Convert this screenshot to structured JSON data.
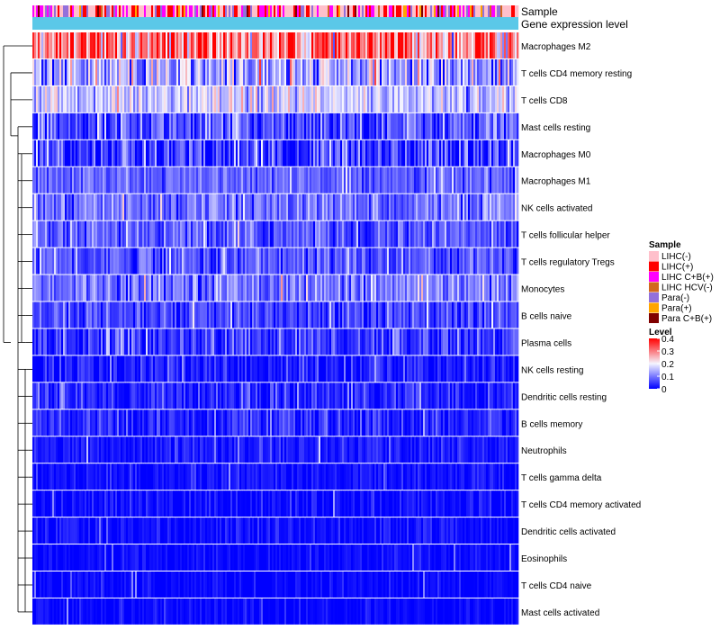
{
  "chart_data": {
    "type": "heatmap",
    "title": "",
    "annotation_tracks": [
      "Sample",
      "Gene expression level"
    ],
    "rows": [
      {
        "label": "Macrophages M2",
        "mean": 0.3,
        "spread": 0.09
      },
      {
        "label": "T cells CD4 memory resting",
        "mean": 0.13,
        "spread": 0.07
      },
      {
        "label": "T cells CD8",
        "mean": 0.16,
        "spread": 0.05
      },
      {
        "label": "Mast cells resting",
        "mean": 0.07,
        "spread": 0.05
      },
      {
        "label": "Macrophages M0",
        "mean": 0.05,
        "spread": 0.06
      },
      {
        "label": "Macrophages M1",
        "mean": 0.08,
        "spread": 0.03
      },
      {
        "label": "NK cells activated",
        "mean": 0.09,
        "spread": 0.04
      },
      {
        "label": "T cells follicular helper",
        "mean": 0.07,
        "spread": 0.04
      },
      {
        "label": "T cells regulatory  Tregs",
        "mean": 0.07,
        "spread": 0.04
      },
      {
        "label": "Monocytes",
        "mean": 0.1,
        "spread": 0.04
      },
      {
        "label": "B cells naive",
        "mean": 0.05,
        "spread": 0.04
      },
      {
        "label": "Plasma cells",
        "mean": 0.05,
        "spread": 0.04
      },
      {
        "label": "NK cells resting",
        "mean": 0.02,
        "spread": 0.03
      },
      {
        "label": "Dendritic cells resting",
        "mean": 0.03,
        "spread": 0.03
      },
      {
        "label": "B cells memory",
        "mean": 0.03,
        "spread": 0.03
      },
      {
        "label": "Neutrophils",
        "mean": 0.02,
        "spread": 0.02
      },
      {
        "label": "T cells gamma delta",
        "mean": 0.01,
        "spread": 0.02
      },
      {
        "label": "T cells CD4 memory activated",
        "mean": 0.01,
        "spread": 0.02
      },
      {
        "label": "Dendritic cells activated",
        "mean": 0.01,
        "spread": 0.02
      },
      {
        "label": "Eosinophils",
        "mean": 0.005,
        "spread": 0.015
      },
      {
        "label": "T cells CD4 naive",
        "mean": 0.005,
        "spread": 0.015
      },
      {
        "label": "Mast cells activated",
        "mean": 0.005,
        "spread": 0.015
      }
    ],
    "n_samples": 270,
    "color_scale": {
      "min": 0,
      "max": 0.4,
      "stops": [
        {
          "value": 0,
          "color": "#0000ff"
        },
        {
          "value": 0.2,
          "color": "#f5f5ff"
        },
        {
          "value": 0.4,
          "color": "#ff0000"
        }
      ]
    },
    "gene_expression_color": "#5bc8e8",
    "legends": {
      "sample": {
        "title": "Sample",
        "entries": [
          {
            "label": "LIHC(-)",
            "color": "#ffc0cb"
          },
          {
            "label": "LIHC(+)",
            "color": "#ff0000"
          },
          {
            "label": "LIHC C+B(+)",
            "color": "#ff00ff"
          },
          {
            "label": "LIHC HCV(-)",
            "color": "#d2691e"
          },
          {
            "label": "Para(-)",
            "color": "#9370db"
          },
          {
            "label": "Para(+)",
            "color": "#ffa500"
          },
          {
            "label": "Para C+B(+)",
            "color": "#800000"
          }
        ]
      },
      "level": {
        "title": "Level",
        "ticks": [
          {
            "value": 0.4,
            "label": "0.4"
          },
          {
            "value": 0.3,
            "label": "0.3"
          },
          {
            "value": 0.2,
            "label": "0.2"
          },
          {
            "value": 0.1,
            "label": "0.1"
          },
          {
            "value": 0,
            "label": "0"
          }
        ]
      }
    }
  }
}
